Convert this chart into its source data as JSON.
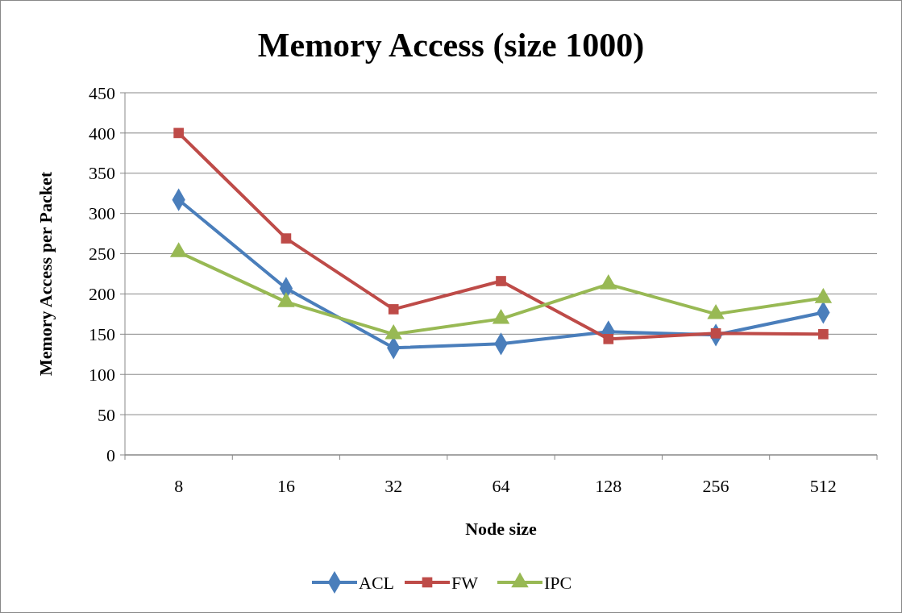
{
  "chart_data": {
    "type": "line",
    "title": "Memory Access (size 1000)",
    "xlabel": "Node size",
    "ylabel": "Memory Access per Packet",
    "categories": [
      "8",
      "16",
      "32",
      "64",
      "128",
      "256",
      "512"
    ],
    "series": [
      {
        "name": "ACL",
        "color": "#4a7ebb",
        "marker": "diamond",
        "values": [
          317,
          207,
          133,
          138,
          153,
          149,
          177
        ]
      },
      {
        "name": "FW",
        "color": "#be4b48",
        "marker": "square",
        "values": [
          400,
          269,
          181,
          216,
          144,
          151,
          150
        ]
      },
      {
        "name": "IPC",
        "color": "#98b954",
        "marker": "triangle",
        "values": [
          252,
          190,
          150,
          169,
          212,
          175,
          195
        ]
      }
    ],
    "ylim": [
      0,
      450
    ],
    "yticks": [
      0,
      50,
      100,
      150,
      200,
      250,
      300,
      350,
      400,
      450
    ],
    "grid": "y",
    "legend": "bottom",
    "line_style": "solid"
  }
}
